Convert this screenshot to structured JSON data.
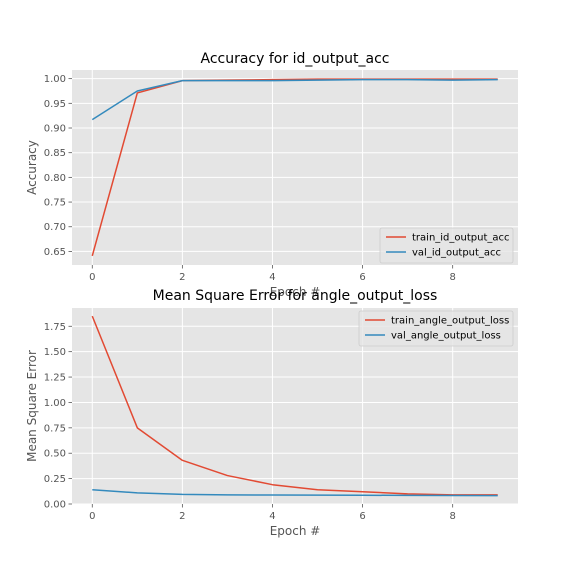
{
  "chart_data": [
    {
      "type": "line",
      "title": "Accuracy for id_output_acc",
      "xlabel": "Epoch #",
      "ylabel": "Accuracy",
      "xlim": [
        -0.45,
        9.45
      ],
      "ylim": [
        0.6225,
        1.0175
      ],
      "xticks": [
        0,
        2,
        4,
        6,
        8
      ],
      "xtick_labels": [
        "0",
        "2",
        "4",
        "6",
        "8"
      ],
      "yticks": [
        0.65,
        0.7,
        0.75,
        0.8,
        0.85,
        0.9,
        0.95,
        1.0
      ],
      "ytick_labels": [
        "0.65",
        "0.70",
        "0.75",
        "0.80",
        "0.85",
        "0.90",
        "0.95",
        "1.00"
      ],
      "grid": true,
      "legend_position": "lower-right",
      "x": [
        0,
        1,
        2,
        3,
        4,
        5,
        6,
        7,
        8,
        9
      ],
      "series": [
        {
          "name": "train_id_output_acc",
          "color": "#E24A33",
          "values": [
            0.641,
            0.971,
            0.996,
            0.997,
            0.998,
            0.999,
            0.999,
            0.999,
            0.999,
            0.999
          ]
        },
        {
          "name": "val_id_output_acc",
          "color": "#348ABD",
          "values": [
            0.917,
            0.975,
            0.996,
            0.996,
            0.996,
            0.997,
            0.998,
            0.998,
            0.997,
            0.998
          ]
        }
      ]
    },
    {
      "type": "line",
      "title": "Mean Square Error for angle_output_loss",
      "xlabel": "Epoch #",
      "ylabel": "Mean Square Error",
      "xlim": [
        -0.45,
        9.45
      ],
      "ylim": [
        0.0,
        1.93
      ],
      "xticks": [
        0,
        2,
        4,
        6,
        8
      ],
      "xtick_labels": [
        "0",
        "2",
        "4",
        "6",
        "8"
      ],
      "yticks": [
        0.0,
        0.25,
        0.5,
        0.75,
        1.0,
        1.25,
        1.5,
        1.75
      ],
      "ytick_labels": [
        "0.00",
        "0.25",
        "0.50",
        "0.75",
        "1.00",
        "1.25",
        "1.50",
        "1.75"
      ],
      "grid": true,
      "legend_position": "upper-right",
      "x": [
        0,
        1,
        2,
        3,
        4,
        5,
        6,
        7,
        8,
        9
      ],
      "series": [
        {
          "name": "train_angle_output_loss",
          "color": "#E24A33",
          "values": [
            1.85,
            0.75,
            0.43,
            0.28,
            0.19,
            0.14,
            0.12,
            0.1,
            0.09,
            0.09
          ]
        },
        {
          "name": "val_angle_output_loss",
          "color": "#348ABD",
          "values": [
            0.14,
            0.11,
            0.095,
            0.09,
            0.088,
            0.087,
            0.086,
            0.085,
            0.084,
            0.083
          ]
        }
      ]
    }
  ]
}
